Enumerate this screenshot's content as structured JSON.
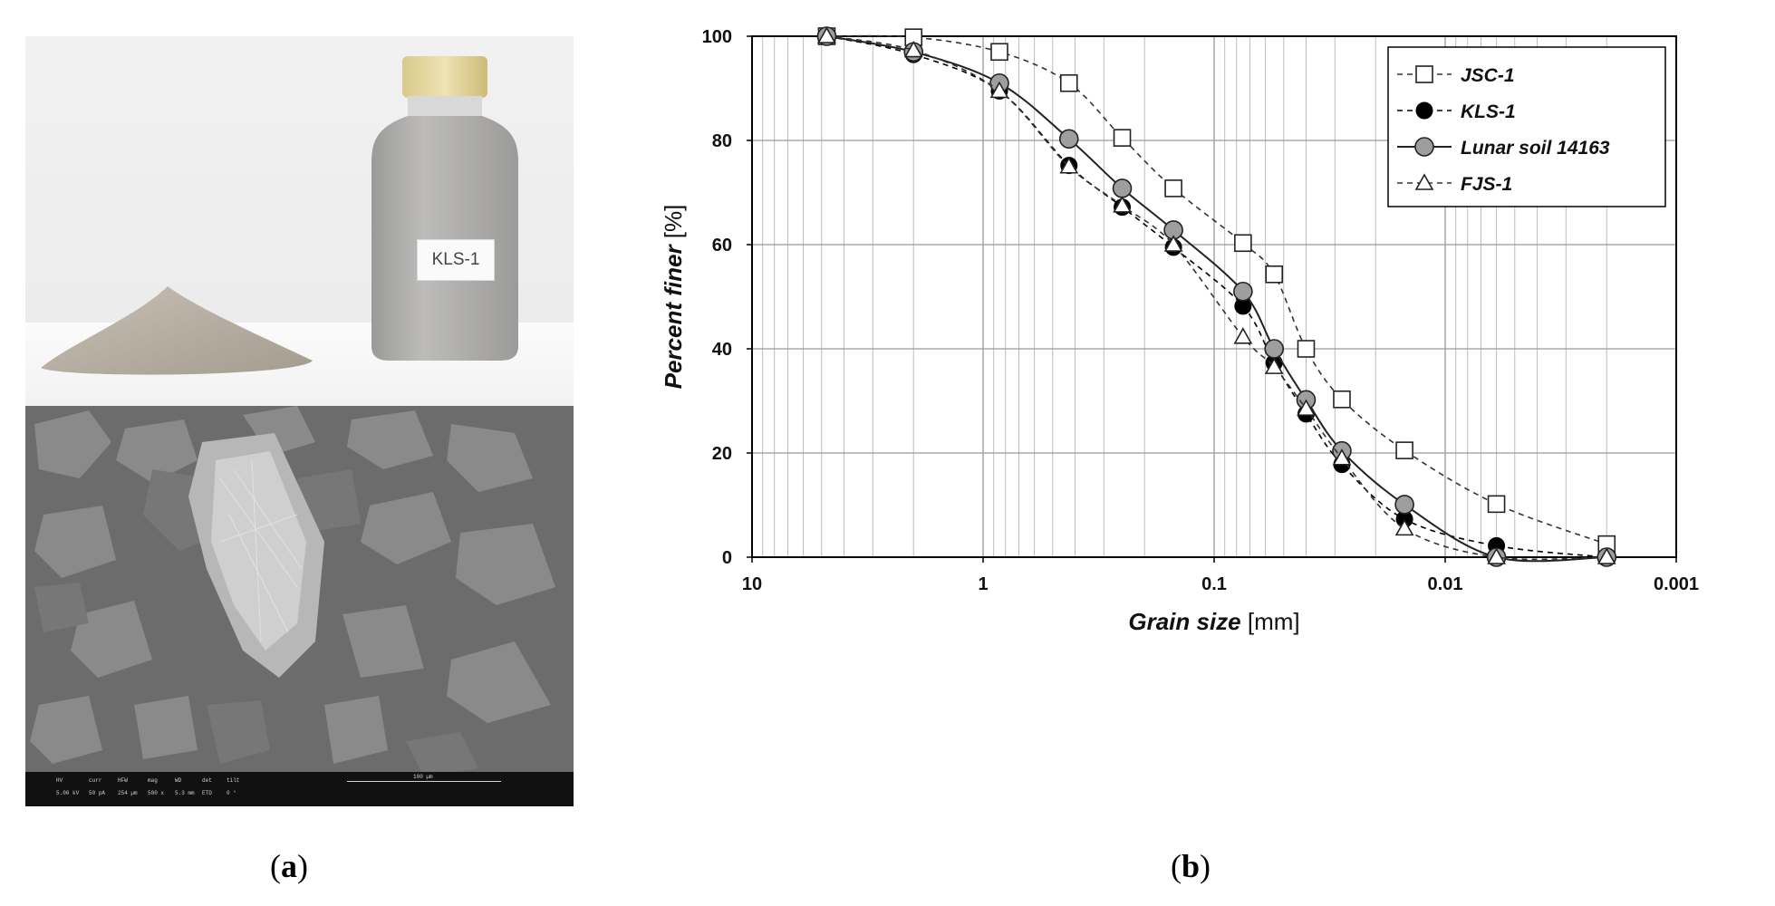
{
  "panel_a": {
    "bottle_label": "KLS-1",
    "caption_open": "(",
    "caption_letter": "a",
    "caption_close": ")",
    "sem_info_row1": [
      "det",
      "curr",
      "HFW",
      "mag",
      "WD",
      "tilt",
      "HV"
    ],
    "sem_info_row2": [
      "ETD",
      "50 pA",
      "254 µm",
      "500 x",
      "5.3 mm",
      "0 °",
      "5.00 kV"
    ],
    "sem_scale": "100 µm"
  },
  "panel_b": {
    "caption_open": "(",
    "caption_letter": "b",
    "caption_close": ")"
  },
  "chart_data": {
    "type": "line",
    "xscale": "log",
    "x_reversed": true,
    "xlim": [
      10,
      0.001
    ],
    "ylim": [
      0,
      100
    ],
    "xticks": [
      "10",
      "1",
      "0.1",
      "0.01",
      "0.001"
    ],
    "yticks": [
      "0",
      "20",
      "40",
      "60",
      "80",
      "100"
    ],
    "xlabel_italic": "Grain size",
    "xlabel_unit": " [mm]",
    "ylabel_italic": "Percent finer",
    "ylabel_unit": " [%]",
    "grid": true,
    "legend_position": "top-right",
    "series": [
      {
        "name": "JSC-1",
        "line": "dashed",
        "marker": "square-open",
        "color": "#333333",
        "x": [
          4.75,
          2.0,
          0.85,
          0.425,
          0.25,
          0.15,
          0.075,
          0.055,
          0.04,
          0.028,
          0.015,
          0.006,
          0.002
        ],
        "y": [
          100,
          99.8,
          97,
          91,
          80.5,
          70.8,
          60.3,
          54.3,
          40,
          30.3,
          20.5,
          10.2,
          2.5
        ]
      },
      {
        "name": "KLS-1",
        "line": "dashed",
        "marker": "circle-filled-black",
        "color": "#000000",
        "x": [
          4.75,
          2.0,
          0.85,
          0.425,
          0.25,
          0.15,
          0.075,
          0.055,
          0.04,
          0.028,
          0.015,
          0.006,
          0.002
        ],
        "y": [
          100,
          96.5,
          89.5,
          75.2,
          67.2,
          59.5,
          48.2,
          37.3,
          27.5,
          17.8,
          7.3,
          2.2,
          0
        ]
      },
      {
        "name": "Lunar soil 14163",
        "line": "solid",
        "marker": "circle-filled-gray",
        "color": "#222222",
        "x": [
          4.75,
          2.0,
          0.85,
          0.425,
          0.25,
          0.15,
          0.075,
          0.055,
          0.04,
          0.028,
          0.015,
          0.006,
          0.002
        ],
        "y": [
          100,
          97,
          91,
          80.3,
          70.8,
          62.8,
          51,
          40,
          30.2,
          20.4,
          10.1,
          0,
          0
        ]
      },
      {
        "name": "FJS-1",
        "line": "dashed",
        "marker": "triangle-open",
        "color": "#333333",
        "x": [
          4.75,
          2.0,
          0.85,
          0.425,
          0.25,
          0.15,
          0.075,
          0.055,
          0.04,
          0.028,
          0.015,
          0.006,
          0.002
        ],
        "y": [
          100,
          97.3,
          89.5,
          75,
          67.5,
          60,
          42.3,
          36.5,
          28.5,
          19,
          5.5,
          0,
          0
        ]
      }
    ]
  }
}
